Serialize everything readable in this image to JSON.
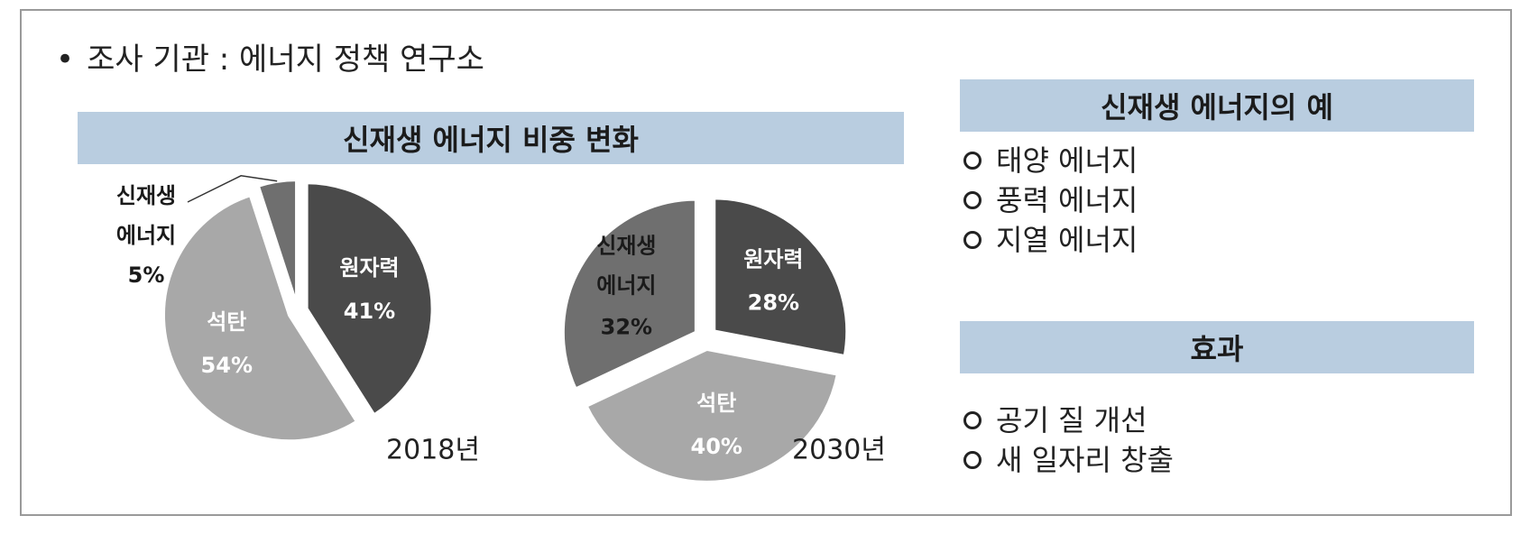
{
  "source_text": "조사 기관 : 에너지 정책 연구소",
  "chart_header": "신재생 에너지 비중 변화",
  "chart_data": [
    {
      "type": "pie",
      "year_label": "2018년",
      "slices": [
        {
          "name": "원자력",
          "value": 41,
          "label": "41%",
          "color": "#4a4a4a"
        },
        {
          "name": "석탄",
          "value": 54,
          "label": "54%",
          "color": "#a8a8a8"
        },
        {
          "name": "신재생 에너지",
          "value": 5,
          "label": "5%",
          "color": "#6f6f6f"
        }
      ],
      "callout": {
        "line1": "신재생",
        "line2": "에너지",
        "line3": "5%"
      }
    },
    {
      "type": "pie",
      "year_label": "2030년",
      "slices": [
        {
          "name": "원자력",
          "value": 28,
          "label": "28%",
          "color": "#4a4a4a"
        },
        {
          "name": "석탄",
          "value": 40,
          "label": "40%",
          "color": "#a8a8a8"
        },
        {
          "name": "신재생 에너지",
          "value": 32,
          "label": "32%",
          "color": "#6f6f6f"
        }
      ],
      "inner_label": {
        "line1": "신재생",
        "line2": "에너지",
        "line3": "32%"
      }
    }
  ],
  "examples": {
    "title": "신재생 에너지의 예",
    "items": [
      "태양 에너지",
      "풍력 에너지",
      "지열 에너지"
    ]
  },
  "effects": {
    "title": "효과",
    "items": [
      "공기 질 개선",
      "새 일자리 창출"
    ]
  }
}
